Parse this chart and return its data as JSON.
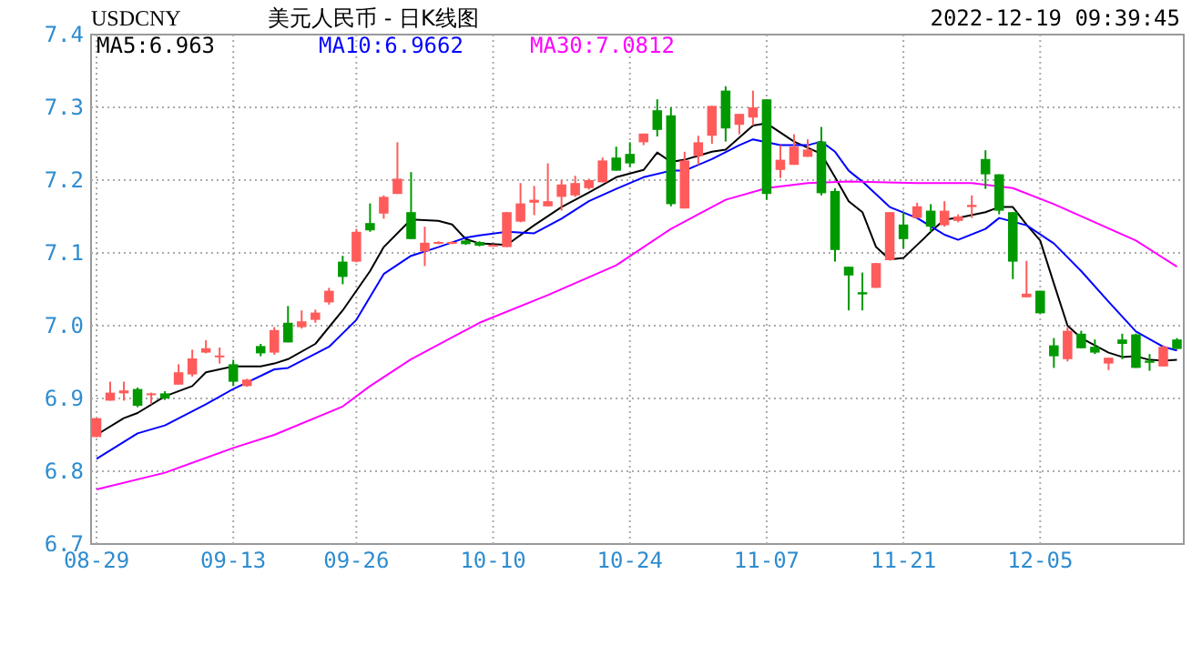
{
  "chart_data": {
    "type": "candlestick",
    "title": "美元人民币  -  日K线图",
    "subtitle": "USDCNY",
    "annotations": [
      "2022-12-19 09:39:45"
    ],
    "categories": [
      "08-29",
      null,
      null,
      null,
      null,
      null,
      null,
      null,
      null,
      null,
      "09-13",
      null,
      null,
      null,
      null,
      null,
      null,
      null,
      null,
      "09-26",
      null,
      null,
      null,
      null,
      null,
      null,
      null,
      null,
      null,
      "10-10",
      null,
      null,
      null,
      null,
      null,
      null,
      null,
      null,
      null,
      "10-24",
      null,
      null,
      null,
      null,
      null,
      null,
      null,
      null,
      null,
      "11-07",
      null,
      null,
      null,
      null,
      null,
      null,
      null,
      null,
      null,
      "11-21",
      null,
      null,
      null,
      null,
      null,
      null,
      null,
      null,
      null,
      "12-05",
      null,
      null,
      null,
      null,
      null,
      null,
      null,
      null,
      null,
      null
    ],
    "ohlc": [
      [
        6.847,
        6.873,
        6.847,
        6.873
      ],
      [
        6.897,
        6.923,
        6.897,
        6.908
      ],
      [
        6.907,
        6.923,
        6.897,
        6.911
      ],
      [
        6.913,
        6.915,
        6.888,
        6.89
      ],
      [
        6.905,
        6.908,
        6.892,
        6.907
      ],
      [
        6.907,
        6.91,
        6.898,
        6.9
      ],
      [
        6.919,
        6.947,
        6.919,
        6.936
      ],
      [
        6.933,
        6.967,
        6.93,
        6.955
      ],
      [
        6.963,
        6.98,
        6.962,
        6.969
      ],
      [
        6.957,
        6.97,
        6.948,
        6.959
      ],
      [
        6.947,
        6.953,
        6.917,
        6.923
      ],
      [
        6.917,
        6.927,
        6.916,
        6.926
      ],
      [
        6.972,
        6.975,
        6.958,
        6.962
      ],
      [
        6.963,
        6.998,
        6.96,
        6.994
      ],
      [
        7.004,
        7.027,
        6.977,
        6.977
      ],
      [
        6.998,
        7.021,
        6.996,
        7.006
      ],
      [
        7.008,
        7.022,
        7.004,
        7.018
      ],
      [
        7.032,
        7.052,
        7.029,
        7.048
      ],
      [
        7.088,
        7.096,
        7.057,
        7.067
      ],
      [
        7.088,
        7.133,
        7.087,
        7.129
      ],
      [
        7.141,
        7.168,
        7.129,
        7.131
      ],
      [
        7.154,
        7.179,
        7.147,
        7.177
      ],
      [
        7.181,
        7.252,
        7.181,
        7.202
      ],
      [
        7.156,
        7.211,
        7.119,
        7.119
      ],
      [
        7.102,
        7.136,
        7.082,
        7.114
      ],
      [
        7.113,
        7.116,
        7.112,
        7.115
      ],
      [
        7.113,
        7.116,
        7.112,
        7.115
      ],
      [
        7.117,
        7.118,
        7.111,
        7.112
      ],
      [
        7.115,
        7.116,
        7.109,
        7.11
      ],
      [
        7.11,
        7.112,
        7.109,
        7.111
      ],
      [
        7.108,
        7.156,
        7.108,
        7.156
      ],
      [
        7.143,
        7.196,
        7.142,
        7.168
      ],
      [
        7.169,
        7.192,
        7.152,
        7.173
      ],
      [
        7.164,
        7.223,
        7.164,
        7.171
      ],
      [
        7.177,
        7.2,
        7.158,
        7.194
      ],
      [
        7.179,
        7.206,
        7.177,
        7.196
      ],
      [
        7.189,
        7.202,
        7.187,
        7.2
      ],
      [
        7.197,
        7.231,
        7.197,
        7.227
      ],
      [
        7.231,
        7.246,
        7.213,
        7.213
      ],
      [
        7.236,
        7.252,
        7.218,
        7.223
      ],
      [
        7.252,
        7.264,
        7.248,
        7.264
      ],
      [
        7.296,
        7.311,
        7.26,
        7.269
      ],
      [
        7.289,
        7.3,
        7.164,
        7.167
      ],
      [
        7.161,
        7.239,
        7.161,
        7.227
      ],
      [
        7.233,
        7.261,
        7.221,
        7.252
      ],
      [
        7.261,
        7.302,
        7.25,
        7.302
      ],
      [
        7.323,
        7.329,
        7.253,
        7.271
      ],
      [
        7.276,
        7.291,
        7.263,
        7.291
      ],
      [
        7.286,
        7.323,
        7.275,
        7.3
      ],
      [
        7.311,
        7.311,
        7.173,
        7.181
      ],
      [
        7.214,
        7.248,
        7.203,
        7.228
      ],
      [
        7.221,
        7.263,
        7.221,
        7.246
      ],
      [
        7.232,
        7.256,
        7.232,
        7.242
      ],
      [
        7.253,
        7.273,
        7.179,
        7.182
      ],
      [
        7.185,
        7.189,
        7.088,
        7.104
      ],
      [
        7.081,
        7.081,
        7.021,
        7.069
      ],
      [
        7.046,
        7.073,
        7.021,
        7.043
      ],
      [
        7.052,
        7.086,
        7.052,
        7.086
      ],
      [
        7.09,
        7.156,
        7.09,
        7.156
      ],
      [
        7.139,
        7.156,
        7.106,
        7.119
      ],
      [
        7.148,
        7.169,
        7.148,
        7.164
      ],
      [
        7.158,
        7.167,
        7.129,
        7.136
      ],
      [
        7.138,
        7.171,
        7.136,
        7.158
      ],
      [
        7.144,
        7.153,
        7.142,
        7.15
      ],
      [
        7.163,
        7.179,
        7.148,
        7.166
      ],
      [
        7.229,
        7.241,
        7.188,
        7.208
      ],
      [
        7.208,
        7.208,
        7.153,
        7.158
      ],
      [
        7.156,
        7.156,
        7.064,
        7.088
      ],
      [
        7.039,
        7.089,
        7.039,
        7.044
      ],
      [
        7.048,
        7.048,
        7.017,
        7.017
      ],
      [
        6.973,
        6.983,
        6.942,
        6.958
      ],
      [
        6.954,
        6.998,
        6.951,
        6.993
      ],
      [
        6.989,
        6.993,
        6.969,
        6.969
      ],
      [
        6.971,
        6.981,
        6.961,
        6.963
      ],
      [
        6.948,
        6.956,
        6.939,
        6.956
      ],
      [
        6.981,
        6.989,
        6.954,
        6.975
      ],
      [
        6.988,
        6.989,
        6.942,
        6.942
      ],
      [
        6.952,
        6.961,
        6.938,
        6.949
      ],
      [
        6.944,
        6.973,
        6.944,
        6.971
      ],
      [
        6.981,
        6.983,
        6.968,
        6.968
      ]
    ],
    "colors": [
      "#ff5b5b",
      "#ff5b5b",
      "#ff5b5b",
      "#009900",
      "#ff5b5b",
      "#009900",
      "#ff5b5b",
      "#ff5b5b",
      "#ff5b5b",
      "#ff5b5b",
      "#009900",
      "#ff5b5b",
      "#009900",
      "#ff5b5b",
      "#009900",
      "#ff5b5b",
      "#ff5b5b",
      "#ff5b5b",
      "#009900",
      "#ff5b5b",
      "#009900",
      "#ff5b5b",
      "#ff5b5b",
      "#009900",
      "#ff5b5b",
      "#ff5b5b",
      "#ff5b5b",
      "#009900",
      "#009900",
      "#ff5b5b",
      "#ff5b5b",
      "#ff5b5b",
      "#ff5b5b",
      "#ff5b5b",
      "#ff5b5b",
      "#ff5b5b",
      "#ff5b5b",
      "#ff5b5b",
      "#009900",
      "#009900",
      "#ff5b5b",
      "#009900",
      "#009900",
      "#ff5b5b",
      "#ff5b5b",
      "#ff5b5b",
      "#009900",
      "#ff5b5b",
      "#ff5b5b",
      "#009900",
      "#ff5b5b",
      "#ff5b5b",
      "#ff5b5b",
      "#009900",
      "#009900",
      "#009900",
      "#009900",
      "#ff5b5b",
      "#ff5b5b",
      "#009900",
      "#ff5b5b",
      "#009900",
      "#ff5b5b",
      "#ff5b5b",
      "#ff5b5b",
      "#009900",
      "#009900",
      "#009900",
      "#ff5b5b",
      "#009900",
      "#009900",
      "#ff5b5b",
      "#009900",
      "#009900",
      "#ff5b5b",
      "#009900",
      "#009900",
      "#009900",
      "#ff5b5b",
      "#009900"
    ],
    "series": [
      {
        "name": "MA5:6.963",
        "type": "line",
        "color": "#000000",
        "values": [
          6.85,
          null,
          6.873,
          6.88,
          null,
          6.903,
          null,
          6.917,
          6.936,
          null,
          6.944,
          null,
          6.944,
          6.948,
          6.954,
          null,
          6.975,
          null,
          7.021,
          null,
          7.075,
          7.108,
          null,
          7.146,
          null,
          7.144,
          7.139,
          7.119,
          7.113,
          null,
          7.111,
          null,
          7.138,
          null,
          7.163,
          null,
          7.183,
          null,
          7.204,
          null,
          7.214,
          7.238,
          7.225,
          7.228,
          null,
          7.239,
          7.242,
          null,
          7.275,
          7.278,
          null,
          7.253,
          null,
          7.236,
          7.204,
          7.171,
          7.156,
          7.108,
          7.091,
          7.093,
          null,
          7.129,
          7.146,
          7.148,
          null,
          7.156,
          7.163,
          7.163,
          7.139,
          7.117,
          7.058,
          7.0,
          6.983,
          6.973,
          6.963,
          6.957,
          6.958,
          6.953,
          6.952,
          6.953
        ]
      },
      {
        "name": "MA10:6.9662",
        "type": "line",
        "color": "#0000ff",
        "values": [
          6.817,
          null,
          null,
          6.852,
          null,
          6.863,
          null,
          null,
          6.892,
          null,
          6.913,
          null,
          null,
          6.94,
          6.942,
          null,
          null,
          6.971,
          null,
          7.008,
          null,
          7.071,
          null,
          7.096,
          null,
          7.108,
          null,
          7.121,
          7.124,
          null,
          7.129,
          null,
          7.127,
          null,
          7.147,
          null,
          7.171,
          null,
          7.188,
          null,
          7.204,
          null,
          7.213,
          7.213,
          null,
          7.229,
          null,
          7.248,
          7.256,
          null,
          7.248,
          null,
          7.248,
          7.253,
          7.239,
          7.213,
          7.198,
          null,
          7.163,
          null,
          7.148,
          null,
          7.125,
          7.118,
          null,
          7.133,
          7.148,
          null,
          7.138,
          null,
          7.113,
          null,
          7.075,
          null,
          7.033,
          null,
          6.992,
          null,
          6.971,
          6.966
        ]
      },
      {
        "name": "MA30:7.0812",
        "type": "line",
        "color": "#ff00ff",
        "values": [
          6.775,
          null,
          null,
          null,
          null,
          6.798,
          null,
          null,
          null,
          null,
          6.832,
          null,
          null,
          6.85,
          null,
          null,
          null,
          null,
          6.889,
          null,
          6.917,
          null,
          null,
          6.954,
          null,
          null,
          null,
          6.994,
          7.004,
          null,
          null,
          null,
          null,
          7.042,
          null,
          null,
          null,
          null,
          7.083,
          null,
          null,
          null,
          7.133,
          null,
          null,
          null,
          7.173,
          null,
          null,
          7.189,
          null,
          null,
          7.196,
          null,
          null,
          7.198,
          null,
          null,
          null,
          null,
          7.196,
          null,
          null,
          null,
          7.196,
          null,
          null,
          7.189,
          null,
          null,
          7.167,
          null,
          null,
          7.142,
          null,
          null,
          7.117,
          null,
          null,
          7.081
        ]
      }
    ],
    "ylim": [
      6.7,
      7.4
    ],
    "yticks": [
      6.7,
      6.8,
      6.9,
      {
        "value": 7,
        "label": "7.0"
      },
      7.1,
      7.2,
      7.3,
      7.4
    ],
    "grid": true,
    "legend": "top left"
  }
}
